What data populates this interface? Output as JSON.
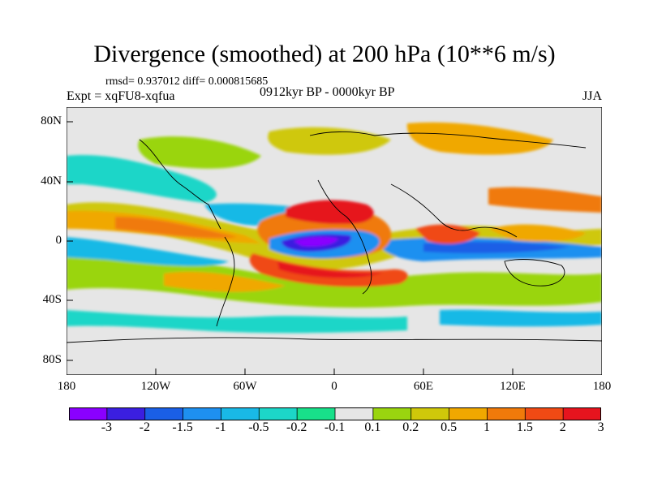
{
  "title": "Divergence (smoothed) at 200 hPa (10**6 m/s)",
  "stats": "rmsd= 0.937012 diff= 0.000815685",
  "experiment": "Expt = xqFU8-xqfua",
  "period": "0912kyr BP - 0000kyr BP",
  "season": "JJA",
  "y_axis": {
    "ticks": [
      "80N",
      "40N",
      "0",
      "40S",
      "80S"
    ]
  },
  "x_axis": {
    "ticks": [
      "180",
      "120W",
      "60W",
      "0",
      "60E",
      "120E",
      "180"
    ]
  },
  "colorbar": {
    "labels": [
      "-3",
      "-2",
      "-1.5",
      "-1",
      "-0.5",
      "-0.2",
      "-0.1",
      "0.1",
      "0.2",
      "0.5",
      "1",
      "1.5",
      "2",
      "3"
    ],
    "colors": [
      "#8a00ff",
      "#3b1fe0",
      "#1a5fe6",
      "#1e90f0",
      "#19b9e6",
      "#1cd6c8",
      "#18e08a",
      "#e6e6e6",
      "#9ad50f",
      "#cfc80a",
      "#f0a800",
      "#f07a0a",
      "#f04a14",
      "#e6141e"
    ]
  }
}
